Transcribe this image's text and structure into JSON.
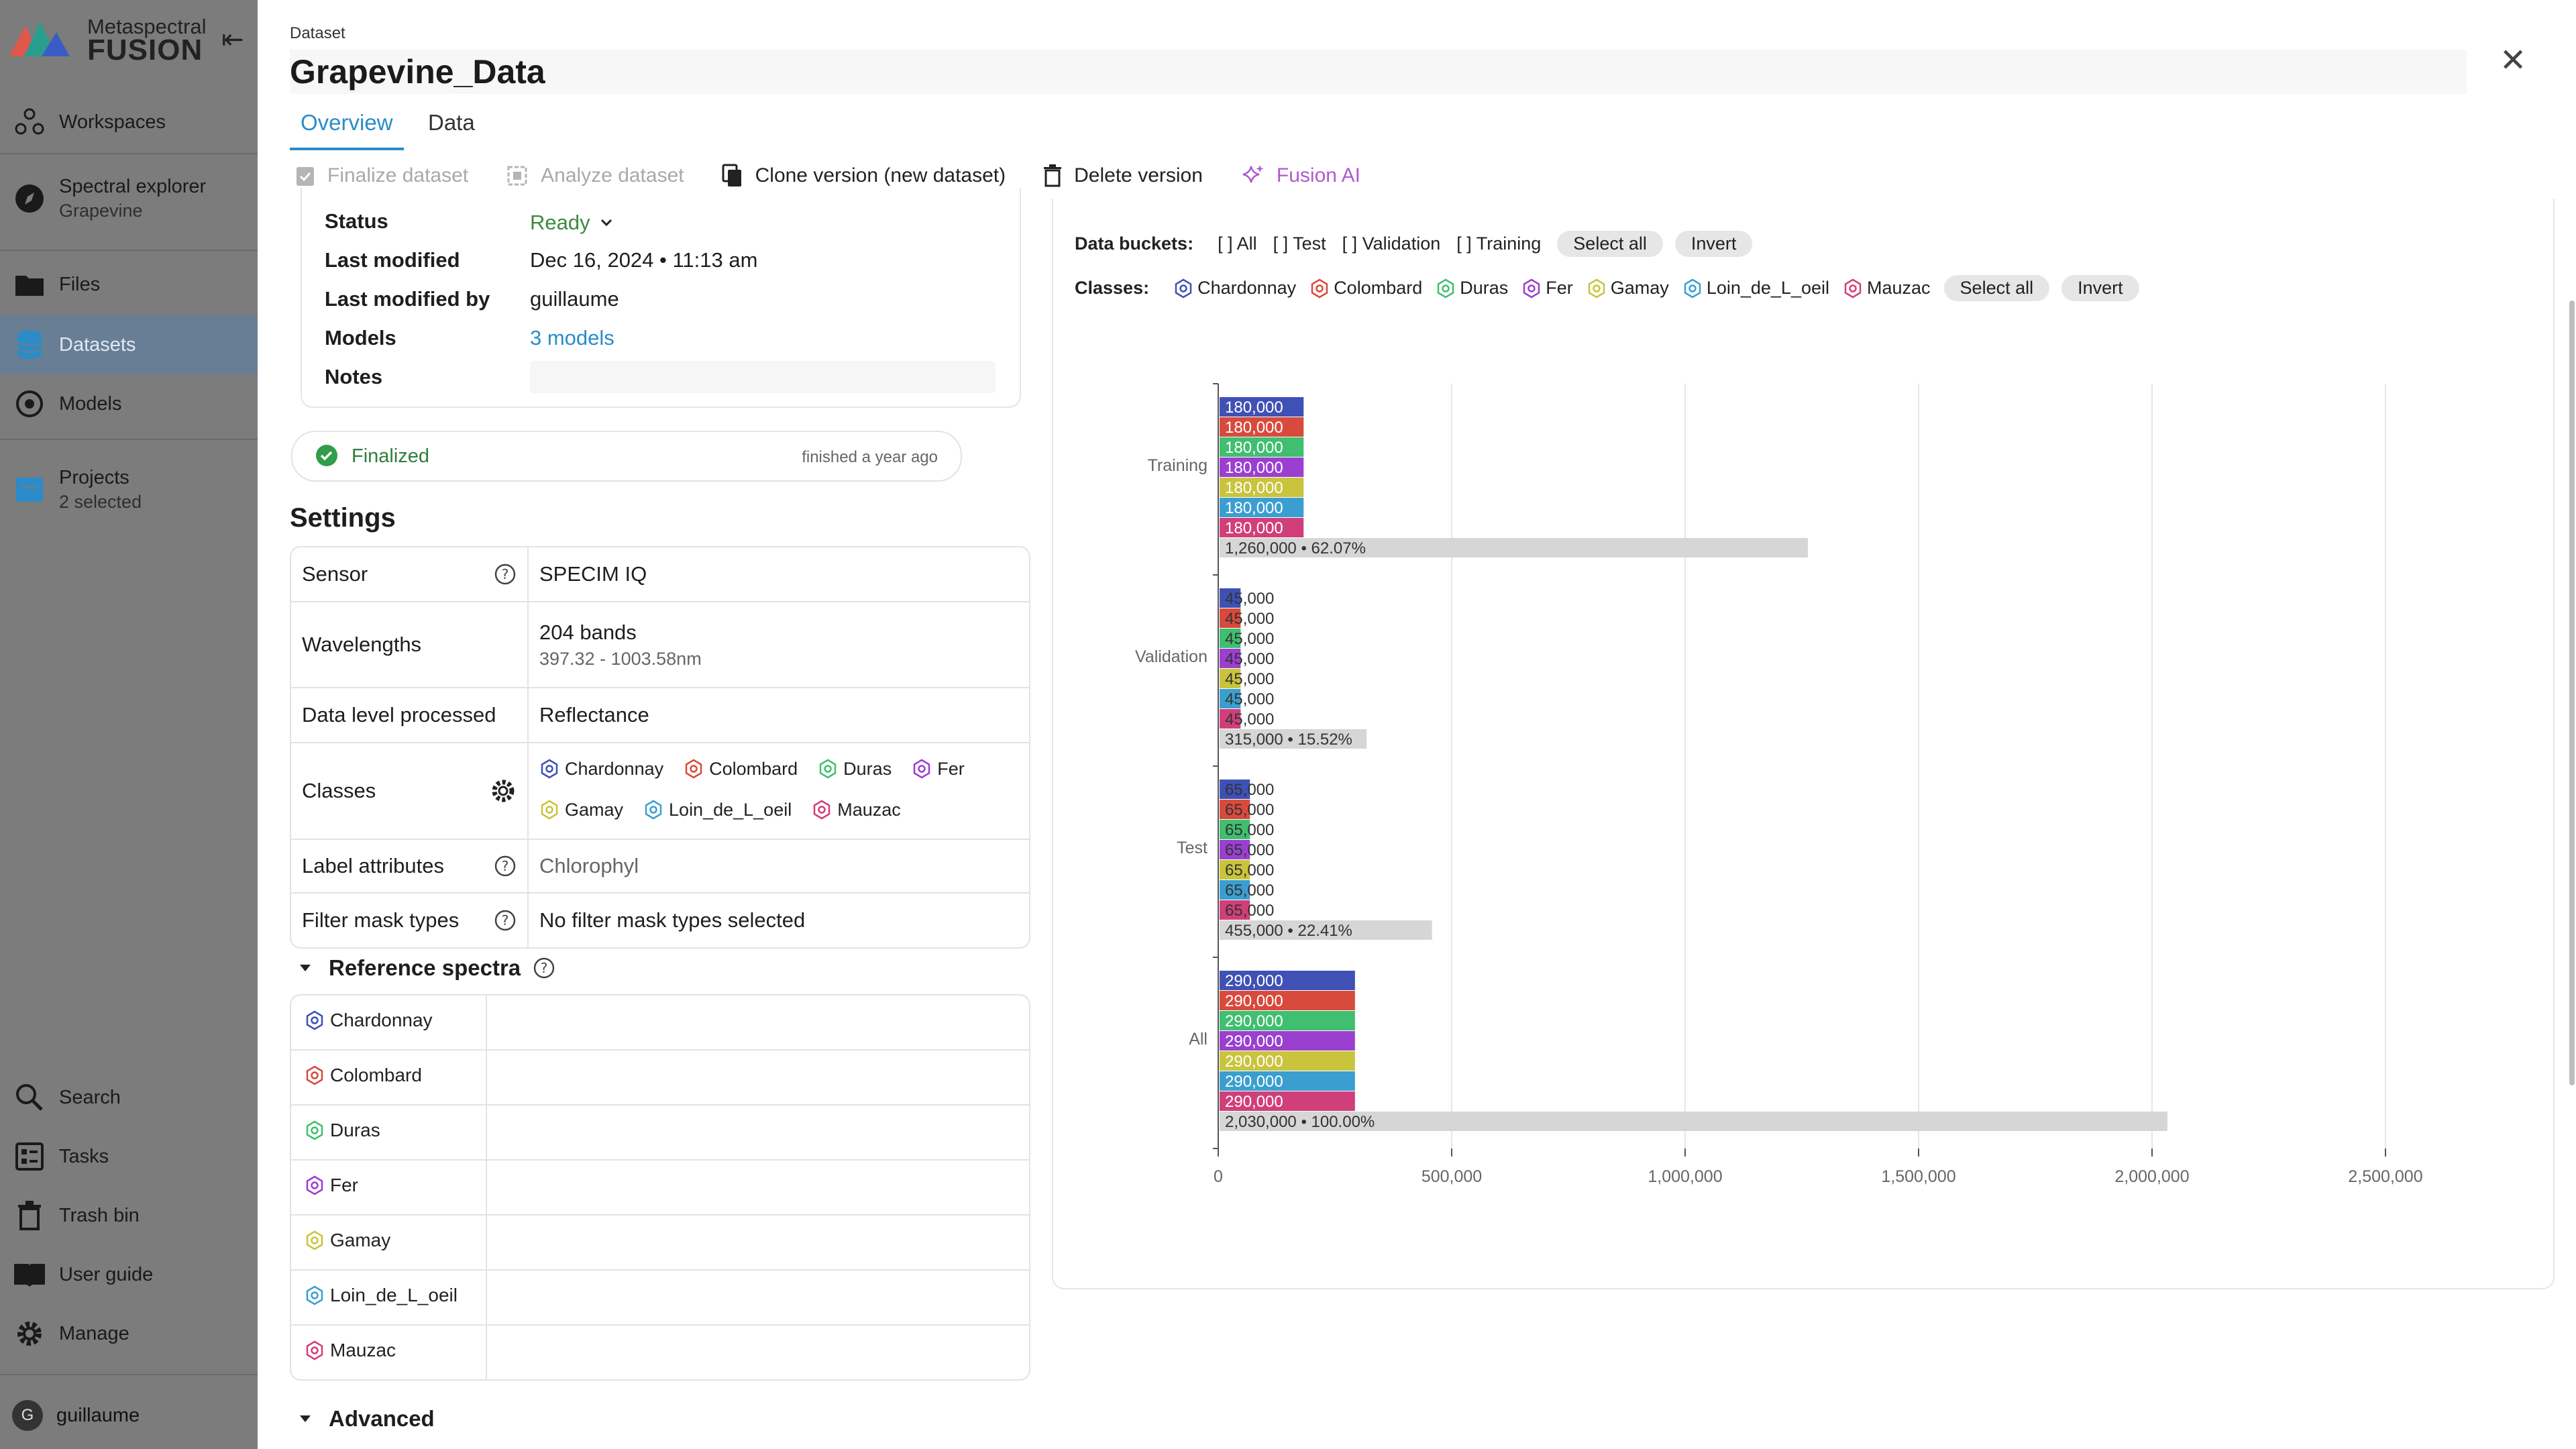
{
  "app": {
    "brand_top": "Metaspectral",
    "brand_bottom": "FUSION"
  },
  "sidebar": {
    "items": [
      {
        "label": "Workspaces",
        "icon": "workspaces-icon"
      },
      {
        "label": "Spectral explorer",
        "sub": "Grapevine",
        "icon": "compass-icon"
      },
      {
        "label": "Files",
        "icon": "folder-icon"
      },
      {
        "label": "Datasets",
        "icon": "database-icon"
      },
      {
        "label": "Models",
        "icon": "models-icon"
      },
      {
        "label": "Projects",
        "sub": "2 selected",
        "icon": "projects-icon"
      },
      {
        "label": "Search",
        "icon": "search-icon"
      },
      {
        "label": "Tasks",
        "icon": "tasks-icon"
      },
      {
        "label": "Trash bin",
        "icon": "trash-icon"
      },
      {
        "label": "User guide",
        "icon": "book-icon"
      },
      {
        "label": "Manage",
        "icon": "gear-icon"
      }
    ],
    "user": {
      "initial": "G",
      "name": "guillaume"
    }
  },
  "header": {
    "label": "Dataset",
    "title": "Grapevine_Data"
  },
  "tabs": [
    "Overview",
    "Data"
  ],
  "toolbar": {
    "finalize": "Finalize dataset",
    "analyze": "Analyze dataset",
    "clone": "Clone version (new dataset)",
    "delete": "Delete version",
    "ai": "Fusion AI"
  },
  "info": {
    "status_label": "Status",
    "status_value": "Ready",
    "modified_label": "Last modified",
    "modified_value": "Dec 16, 2024 • 11:13 am",
    "by_label": "Last modified by",
    "by_value": "guillaume",
    "models_label": "Models",
    "models_value": "3 models",
    "notes_label": "Notes"
  },
  "finalized": {
    "label": "Finalized",
    "time": "finished a year ago"
  },
  "settings": {
    "title": "Settings",
    "sensor_label": "Sensor",
    "sensor_value": "SPECIM IQ",
    "wavelengths_label": "Wavelengths",
    "wavelengths_value": "204 bands",
    "wavelengths_range": "397.32 - 1003.58nm",
    "level_label": "Data level processed",
    "level_value": "Reflectance",
    "classes_label": "Classes",
    "label_attr_label": "Label attributes",
    "label_attr_value": "Chlorophyl",
    "mask_label": "Filter mask types",
    "mask_value": "No filter mask types selected"
  },
  "classes": [
    {
      "name": "Chardonnay",
      "color": "#3f51b5"
    },
    {
      "name": "Colombard",
      "color": "#d84a3c"
    },
    {
      "name": "Duras",
      "color": "#3fbf6f"
    },
    {
      "name": "Fer",
      "color": "#9b3fd1"
    },
    {
      "name": "Gamay",
      "color": "#c9c43c"
    },
    {
      "name": "Loin_de_L_oeil",
      "color": "#3a9fd0"
    },
    {
      "name": "Mauzac",
      "color": "#d13f7a"
    }
  ],
  "reference": {
    "title": "Reference spectra"
  },
  "advanced": {
    "title": "Advanced"
  },
  "filters": {
    "buckets_label": "Data buckets:",
    "buckets": [
      "[ ] All",
      "[ ] Test",
      "[ ] Validation",
      "[ ] Training"
    ],
    "classes_label": "Classes:",
    "select_all": "Select all",
    "invert": "Invert"
  },
  "chart_data": {
    "type": "bar",
    "orientation": "horizontal",
    "groups": [
      {
        "name": "Training",
        "values": [
          180000,
          180000,
          180000,
          180000,
          180000,
          180000,
          180000
        ],
        "labels": [
          "180,000",
          "180,000",
          "180,000",
          "180,000",
          "180,000",
          "180,000",
          "180,000"
        ],
        "total": 1260000,
        "total_label": "1,260,000 • 62.07%"
      },
      {
        "name": "Validation",
        "values": [
          45000,
          45000,
          45000,
          45000,
          45000,
          45000,
          45000
        ],
        "labels": [
          "45,000",
          "45,000",
          "45,000",
          "45,000",
          "45,000",
          "45,000",
          "45,000"
        ],
        "total": 315000,
        "total_label": "315,000 • 15.52%"
      },
      {
        "name": "Test",
        "values": [
          65000,
          65000,
          65000,
          65000,
          65000,
          65000,
          65000
        ],
        "labels": [
          "65,000",
          "65,000",
          "65,000",
          "65,000",
          "65,000",
          "65,000",
          "65,000"
        ],
        "total": 455000,
        "total_label": "455,000 • 22.41%"
      },
      {
        "name": "All",
        "values": [
          290000,
          290000,
          290000,
          290000,
          290000,
          290000,
          290000
        ],
        "labels": [
          "290,000",
          "290,000",
          "290,000",
          "290,000",
          "290,000",
          "290,000",
          "290,000"
        ],
        "total": 2030000,
        "total_label": "2,030,000 • 100.00%"
      }
    ],
    "series_colors": [
      "#3f51b5",
      "#d84a3c",
      "#3fbf6f",
      "#9b3fd1",
      "#c9c43c",
      "#3a9fd0",
      "#d13f7a"
    ],
    "total_color": "#d6d6d6",
    "xlim": [
      0,
      2500000
    ],
    "xticks": [
      0,
      500000,
      1000000,
      1500000,
      2000000,
      2500000
    ],
    "xtick_labels": [
      "0",
      "500,000",
      "1,000,000",
      "1,500,000",
      "2,000,000",
      "2,500,000"
    ],
    "grid": true
  }
}
